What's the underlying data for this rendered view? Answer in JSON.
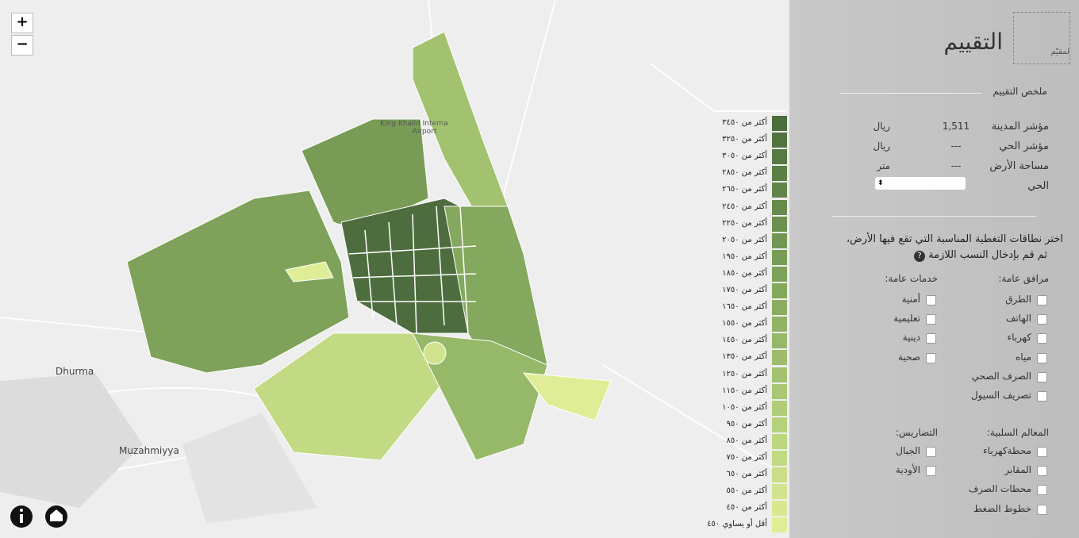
{
  "map": {
    "zoom_in": "+",
    "zoom_out": "−",
    "airport_label": [
      "King Khalid Interna",
      "Airport"
    ],
    "place_labels": [
      "Dhurma",
      "Muzahmiyya"
    ]
  },
  "legend": {
    "items": [
      {
        "label": "أكثر من ٣٤٥٠",
        "color": "#4d6d3e"
      },
      {
        "label": "أكثر من ٣٢٥٠",
        "color": "#527340"
      },
      {
        "label": "أكثر من ٣٠٥٠",
        "color": "#577943"
      },
      {
        "label": "أكثر من ٢٨٥٠",
        "color": "#5c7f46"
      },
      {
        "label": "أكثر من ٢٦٥٠",
        "color": "#618549"
      },
      {
        "label": "أكثر من ٢٤٥٠",
        "color": "#678b4c"
      },
      {
        "label": "أكثر من ٢٢٥٠",
        "color": "#6c904f"
      },
      {
        "label": "أكثر من ٢٠٥٠",
        "color": "#729653"
      },
      {
        "label": "أكثر من ١٩٥٠",
        "color": "#789c56"
      },
      {
        "label": "أكثر من ١٨٥٠",
        "color": "#7ea25a"
      },
      {
        "label": "أكثر من ١٧٥٠",
        "color": "#84a85d"
      },
      {
        "label": "أكثر من ١٦٥٠",
        "color": "#8aad61"
      },
      {
        "label": "أكثر من ١٥٥٠",
        "color": "#90b365"
      },
      {
        "label": "أكثر من ١٤٥٠",
        "color": "#96b869"
      },
      {
        "label": "أكثر من ١٣٥٠",
        "color": "#9dbd6c"
      },
      {
        "label": "أكثر من ١٢٥٠",
        "color": "#a3c270"
      },
      {
        "label": "أكثر من ١١٥٠",
        "color": "#a9c774"
      },
      {
        "label": "أكثر من ١٠٥٠",
        "color": "#b0cc78"
      },
      {
        "label": "أكثر من ٩٥٠",
        "color": "#b6d17c"
      },
      {
        "label": "أكثر من ٨٥٠",
        "color": "#bdd680"
      },
      {
        "label": "أكثر من ٧٥٠",
        "color": "#c3da84"
      },
      {
        "label": "أكثر من ٦٥٠",
        "color": "#cade88"
      },
      {
        "label": "أكثر من ٥٥٠",
        "color": "#d1e38c"
      },
      {
        "label": "أكثر من ٤٥٠",
        "color": "#d8e891"
      },
      {
        "label": "أقل أو يساوي ٤٥٠",
        "color": "#dfee96"
      }
    ]
  },
  "panel": {
    "logo_text": "لمقيّم",
    "title": "التقييم",
    "summary_heading": "ملخص التقييم",
    "rows": [
      {
        "label": "مؤشر المدينة",
        "value": "1,511",
        "unit": "ريال"
      },
      {
        "label": "مؤشر الحي",
        "value": "---",
        "unit": "ريال"
      },
      {
        "label": "مساحة الأرض",
        "value": "---",
        "unit": "متر"
      }
    ],
    "district_label": "الحي",
    "instructions": [
      "اختر نطاقات التغطية المناسبة التي تقع فيها الأرض،",
      "ثم قم بإدخال النسب اللازمة"
    ],
    "public_utilities": {
      "heading": "مرافق عامة:",
      "items": [
        "الطرق",
        "الهاتف",
        "كهرباء",
        "مياه",
        "الصرف الصحي",
        "تصريف السيول"
      ]
    },
    "public_services": {
      "heading": "خدمات عامة:",
      "items": [
        "أمنية",
        "تعليمية",
        "دينية",
        "صحية"
      ]
    },
    "negative_features": {
      "heading": "المعالم السلبية:",
      "items": [
        "محطةكهرباء",
        "المقابر",
        "محطات الصرف",
        "خطوط الضغط"
      ]
    },
    "terrain": {
      "heading": "التضاريس:",
      "items": [
        "الجبال",
        "الأودية"
      ]
    }
  }
}
